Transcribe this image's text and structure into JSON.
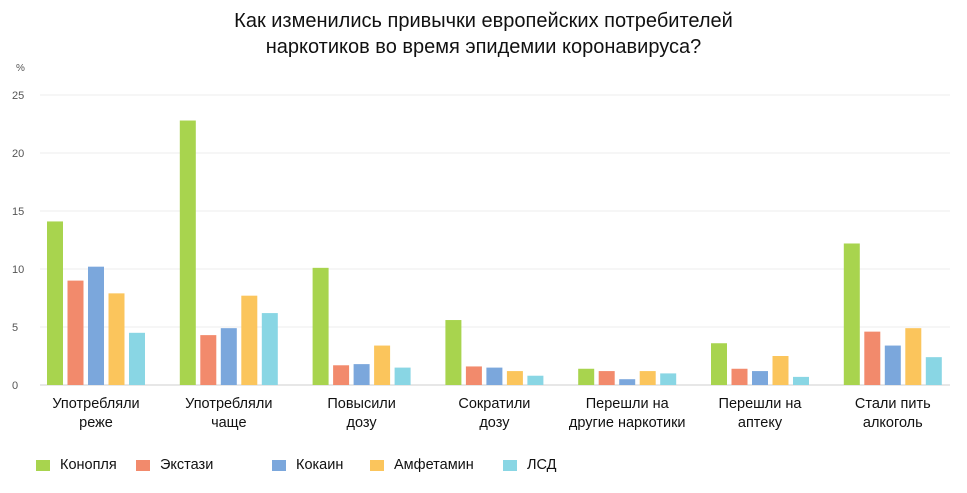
{
  "chart_data": {
    "type": "bar",
    "title": "Как изменились привычки европейских потребителей наркотиков во время эпидемии коронавируса?",
    "title_lines": [
      "Как изменились привычки европейских потребителей",
      "наркотиков во время эпидемии коронавируса?"
    ],
    "ylabel": "%",
    "ylim": [
      0,
      25
    ],
    "yticks": [
      "0",
      "5",
      "10",
      "15",
      "20",
      "25"
    ],
    "grid": true,
    "legend_position": "bottom-left",
    "categories": [
      [
        "Употребляли",
        "реже"
      ],
      [
        "Употребляли",
        "чаще"
      ],
      [
        "Повысили",
        "дозу"
      ],
      [
        "Сократили",
        "дозу"
      ],
      [
        "Перешли на",
        "другие наркотики"
      ],
      [
        "Перешли на",
        "аптеку"
      ],
      [
        "Стали пить",
        "алкоголь"
      ]
    ],
    "series": [
      {
        "name": "Конопля",
        "color": "#a8d44e",
        "values": [
          14.1,
          22.8,
          10.1,
          5.6,
          1.4,
          3.6,
          12.2
        ]
      },
      {
        "name": "Экстази",
        "color": "#f28a6c",
        "values": [
          9.0,
          4.3,
          1.7,
          1.6,
          1.2,
          1.4,
          4.6
        ]
      },
      {
        "name": "Кокаин",
        "color": "#7ba7dc",
        "values": [
          10.2,
          4.9,
          1.8,
          1.5,
          0.5,
          1.2,
          3.4
        ]
      },
      {
        "name": "Амфетамин",
        "color": "#fbc55c",
        "values": [
          7.9,
          7.7,
          3.4,
          1.2,
          1.2,
          2.5,
          4.9
        ]
      },
      {
        "name": "ЛСД",
        "color": "#89d6e4",
        "values": [
          4.5,
          6.2,
          1.5,
          0.8,
          1.0,
          0.7,
          2.4
        ]
      }
    ]
  }
}
